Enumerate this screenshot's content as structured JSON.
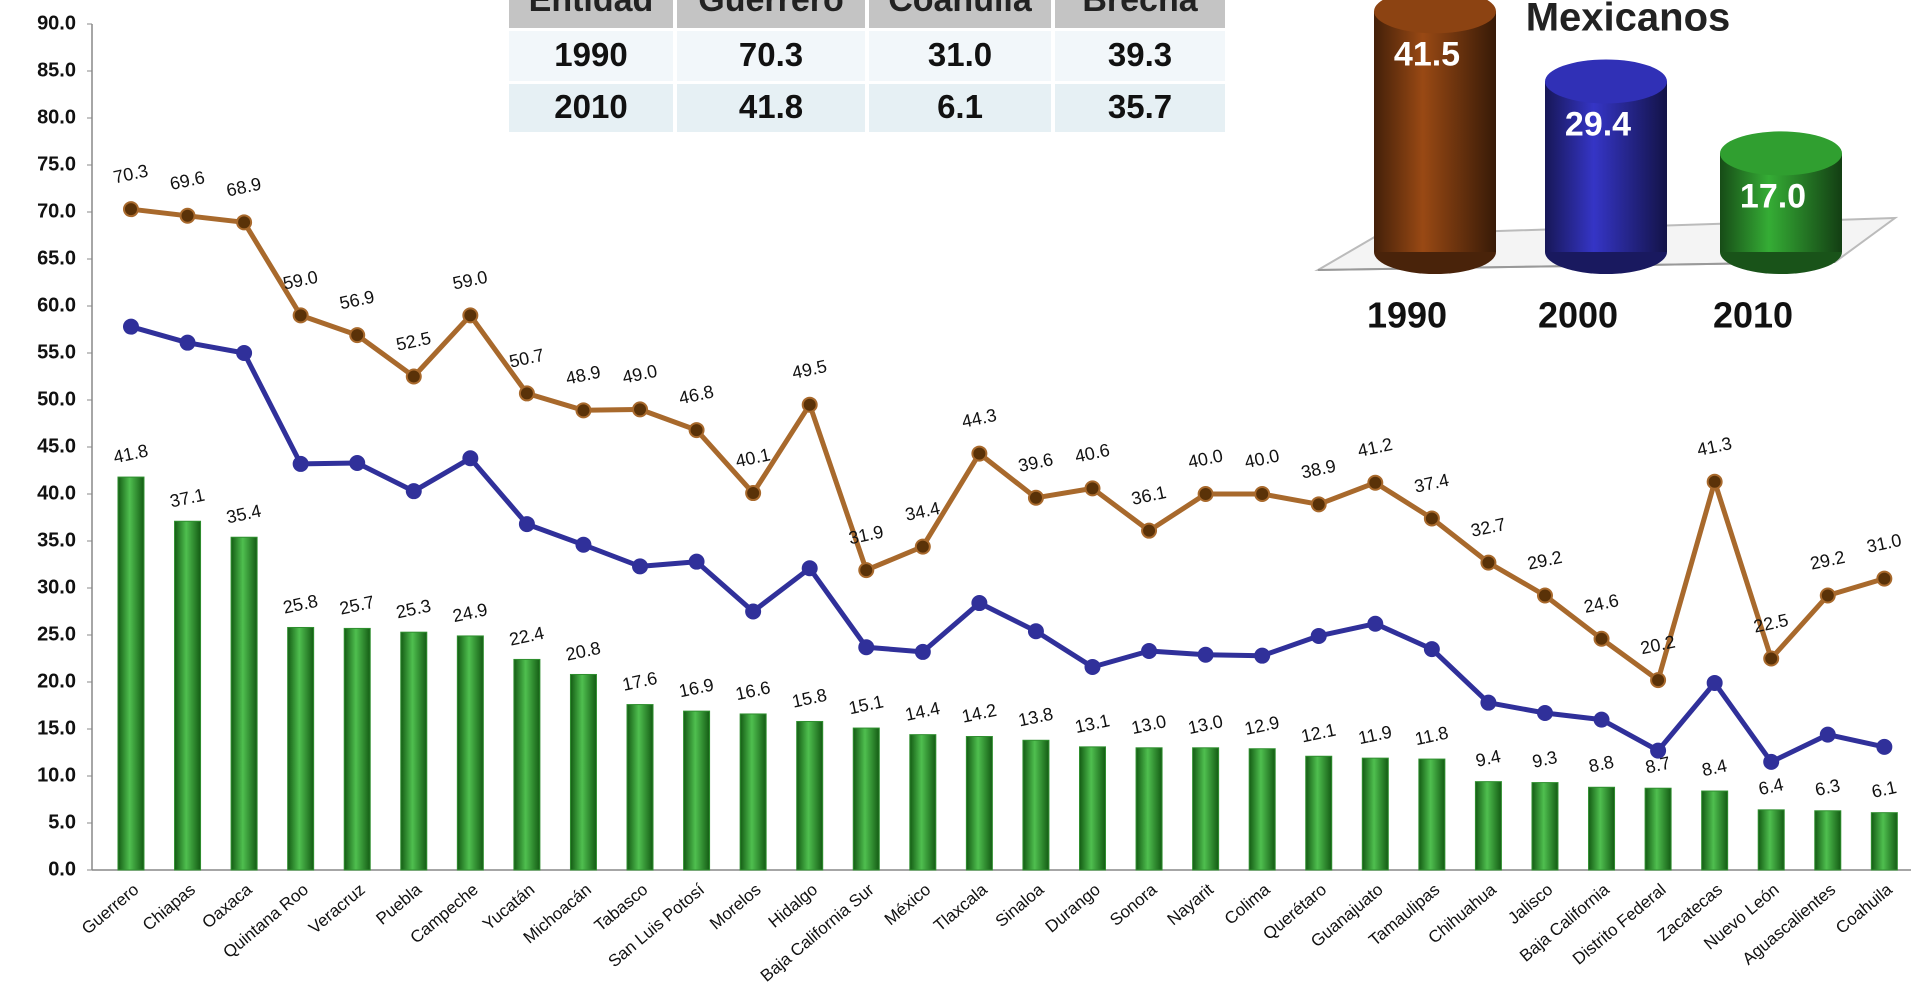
{
  "chart_data": [
    {
      "type": "bar",
      "categories": [
        "Guerrero",
        "Chiapas",
        "Oaxaca",
        "Quintana Roo",
        "Veracruz",
        "Puebla",
        "Campeche",
        "Yucatán",
        "Michoacán",
        "Tabasco",
        "San Luis Potosí",
        "Morelos",
        "Hidalgo",
        "Baja California Sur",
        "México",
        "Tlaxcala",
        "Sinaloa",
        "Durango",
        "Sonora",
        "Nayarit",
        "Colima",
        "Querétaro",
        "Guanajuato",
        "Tamaulipas",
        "Chihuahua",
        "Jalisco",
        "Baja California",
        "Distrito Federal",
        "Zacatecas",
        "Nuevo León",
        "Aguascalientes",
        "Coahuila"
      ],
      "series": [
        {
          "type": "bar",
          "color": "#2f8f2f",
          "values": [
            41.8,
            37.1,
            35.4,
            25.8,
            25.7,
            25.3,
            24.9,
            22.4,
            20.8,
            17.6,
            16.9,
            16.6,
            15.8,
            15.1,
            14.4,
            14.2,
            13.8,
            13.1,
            13.0,
            13.0,
            12.9,
            12.1,
            11.9,
            11.8,
            9.4,
            9.3,
            8.8,
            8.7,
            8.4,
            6.4,
            6.3,
            6.1
          ],
          "value_labels": [
            "41.8",
            "37.1",
            "35.4",
            "25.8",
            "25.7",
            "25.3",
            "24.9",
            "22.4",
            "20.8",
            "17.6",
            "16.9",
            "16.6",
            "15.8",
            "15.1",
            "14.4",
            "14.2",
            "13.8",
            "13.1",
            "13.0",
            "13.0",
            "12.9",
            "12.1",
            "11.9",
            "11.8",
            "9.4",
            "9.3",
            "8.8",
            "8.7",
            "8.4",
            "6.4",
            "6.3",
            "6.1"
          ]
        },
        {
          "type": "line",
          "color": "#a8692c",
          "values": [
            70.3,
            69.6,
            68.9,
            59.0,
            56.9,
            52.5,
            59.0,
            50.7,
            48.9,
            49.0,
            46.8,
            40.1,
            49.5,
            31.9,
            34.4,
            44.3,
            39.6,
            40.6,
            36.1,
            40.0,
            40.0,
            38.9,
            41.2,
            37.4,
            32.7,
            29.2,
            24.6,
            20.2,
            41.3,
            22.5,
            29.2,
            31.0
          ],
          "value_labels": [
            "70.3",
            "69.6",
            "68.9",
            "59.0",
            "56.9",
            "52.5",
            "59.0",
            "50.7",
            "48.9",
            "49.0",
            "46.8",
            "40.1",
            "49.5",
            "31.9",
            "34.4",
            "44.3",
            "39.6",
            "40.6",
            "36.1",
            "40.0",
            "40.0",
            "38.9",
            "41.2",
            "37.4",
            "32.7",
            "29.2",
            "24.6",
            "20.2",
            "41.3",
            "22.5",
            "29.2",
            "31.0"
          ]
        },
        {
          "type": "line",
          "color": "#30309a",
          "values": [
            57.8,
            56.1,
            55.0,
            43.2,
            43.3,
            40.3,
            43.8,
            36.8,
            34.6,
            32.3,
            32.8,
            27.5,
            32.1,
            23.7,
            23.2,
            28.4,
            25.4,
            21.6,
            23.3,
            22.9,
            22.8,
            24.9,
            26.2,
            23.5,
            17.8,
            16.7,
            16.0,
            12.7,
            19.9,
            11.5,
            14.4,
            13.1
          ]
        }
      ],
      "ylim": [
        0,
        90
      ],
      "yticks": [
        {
          "value": 0,
          "label": "0.0"
        },
        {
          "value": 5,
          "label": "5.0"
        },
        {
          "value": 10,
          "label": "10.0"
        },
        {
          "value": 15,
          "label": "15.0"
        },
        {
          "value": 20,
          "label": "20.0"
        },
        {
          "value": 25,
          "label": "25.0"
        },
        {
          "value": 30,
          "label": "30.0"
        },
        {
          "value": 35,
          "label": "35.0"
        },
        {
          "value": 40,
          "label": "40.0"
        },
        {
          "value": 45,
          "label": "45.0"
        },
        {
          "value": 50,
          "label": "50.0"
        },
        {
          "value": 55,
          "label": "55.0"
        },
        {
          "value": 60,
          "label": "60.0"
        },
        {
          "value": 65,
          "label": "65.0"
        },
        {
          "value": 70,
          "label": "70.0"
        },
        {
          "value": 75,
          "label": "75.0"
        },
        {
          "value": 80,
          "label": "80.0"
        },
        {
          "value": 85,
          "label": "85.0"
        },
        {
          "value": 90,
          "label": "90.0"
        }
      ],
      "grid": false
    },
    {
      "type": "cylinder",
      "title": "Mexicanos",
      "categories": [
        "1990",
        "2000",
        "2010"
      ],
      "values": [
        41.5,
        29.4,
        17.0
      ],
      "value_labels": [
        "41.5",
        "29.4",
        "17.0"
      ],
      "colors": [
        "#7a3a10",
        "#2a2a9e",
        "#2a8a2a"
      ]
    }
  ],
  "table": {
    "columns": [
      "Entidad",
      "Guerrero",
      "Coahuila",
      "Brecha"
    ],
    "rows": [
      [
        "1990",
        "70.3",
        "31.0",
        "39.3"
      ],
      [
        "2010",
        "41.8",
        "6.1",
        "35.7"
      ]
    ]
  }
}
